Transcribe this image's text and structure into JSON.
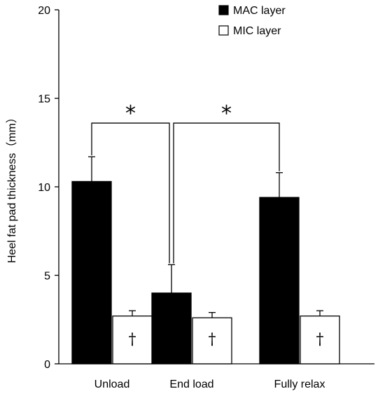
{
  "chart_data": {
    "type": "bar",
    "categories": [
      "Unload",
      "End load",
      "Fully relax"
    ],
    "series": [
      {
        "name": "MAC layer",
        "color": "#000000",
        "values": [
          10.3,
          4.0,
          9.4
        ],
        "errors": [
          1.4,
          1.6,
          1.4
        ]
      },
      {
        "name": "MIC layer",
        "color": "#ffffff",
        "values": [
          2.7,
          2.6,
          2.7
        ],
        "errors": [
          0.3,
          0.3,
          0.3
        ]
      }
    ],
    "ylabel": "Heel fat pad thickness（mm）",
    "ylim": [
      0,
      20
    ],
    "yticks": [
      0,
      5,
      10,
      15,
      20
    ],
    "legend": "top-right",
    "annotations": {
      "significance_symbol": "*",
      "comparisons": [
        [
          0,
          1
        ],
        [
          1,
          2
        ]
      ],
      "mic_marker": "†"
    }
  }
}
